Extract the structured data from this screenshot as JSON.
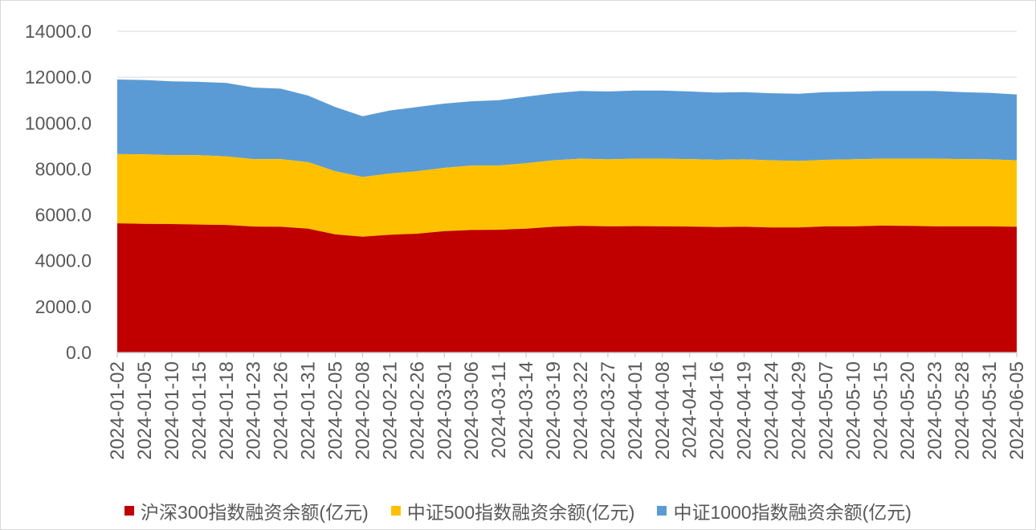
{
  "chart_data": {
    "type": "area",
    "stacked": true,
    "categories": [
      "2024-01-02",
      "2024-01-05",
      "2024-01-10",
      "2024-01-15",
      "2024-01-18",
      "2024-01-23",
      "2024-01-26",
      "2024-01-31",
      "2024-02-05",
      "2024-02-08",
      "2024-02-21",
      "2024-02-26",
      "2024-03-01",
      "2024-03-06",
      "2024-03-11",
      "2024-03-14",
      "2024-03-19",
      "2024-03-22",
      "2024-03-27",
      "2024-04-01",
      "2024-04-08",
      "2024-04-11",
      "2024-04-16",
      "2024-04-19",
      "2024-04-24",
      "2024-04-29",
      "2024-05-07",
      "2024-05-10",
      "2024-05-15",
      "2024-05-20",
      "2024-05-23",
      "2024-05-28",
      "2024-05-31",
      "2024-06-05"
    ],
    "series": [
      {
        "name": "沪深300指数融资余额(亿元)",
        "color": "#C00000",
        "values": [
          5630,
          5610,
          5600,
          5580,
          5560,
          5490,
          5480,
          5400,
          5150,
          5050,
          5130,
          5180,
          5290,
          5340,
          5350,
          5400,
          5480,
          5520,
          5500,
          5510,
          5500,
          5490,
          5470,
          5480,
          5450,
          5450,
          5500,
          5500,
          5530,
          5520,
          5500,
          5500,
          5500,
          5480
        ]
      },
      {
        "name": "中证500指数融资余额(亿元)",
        "color": "#FFC000",
        "values": [
          3020,
          3030,
          3000,
          3020,
          2990,
          2940,
          2950,
          2900,
          2750,
          2600,
          2670,
          2720,
          2760,
          2810,
          2800,
          2850,
          2900,
          2930,
          2920,
          2940,
          2950,
          2940,
          2930,
          2940,
          2930,
          2900,
          2900,
          2920,
          2920,
          2930,
          2950,
          2930,
          2920,
          2900
        ]
      },
      {
        "name": "中证1000指数融资余额(亿元)",
        "color": "#5B9BD5",
        "values": [
          3250,
          3240,
          3220,
          3200,
          3200,
          3120,
          3070,
          2900,
          2800,
          2650,
          2750,
          2800,
          2800,
          2800,
          2850,
          2900,
          2920,
          2950,
          2960,
          2970,
          2970,
          2950,
          2930,
          2930,
          2920,
          2930,
          2950,
          2950,
          2950,
          2950,
          2950,
          2920,
          2900,
          2870
        ]
      }
    ],
    "ylim": [
      0,
      14000
    ],
    "yticks": [
      0,
      2000,
      4000,
      6000,
      8000,
      10000,
      12000,
      14000
    ],
    "ytick_labels": [
      "0.0",
      "2000.0",
      "4000.0",
      "6000.0",
      "8000.0",
      "10000.0",
      "12000.0",
      "14000.0"
    ],
    "grid": true,
    "legend": "bottom"
  }
}
